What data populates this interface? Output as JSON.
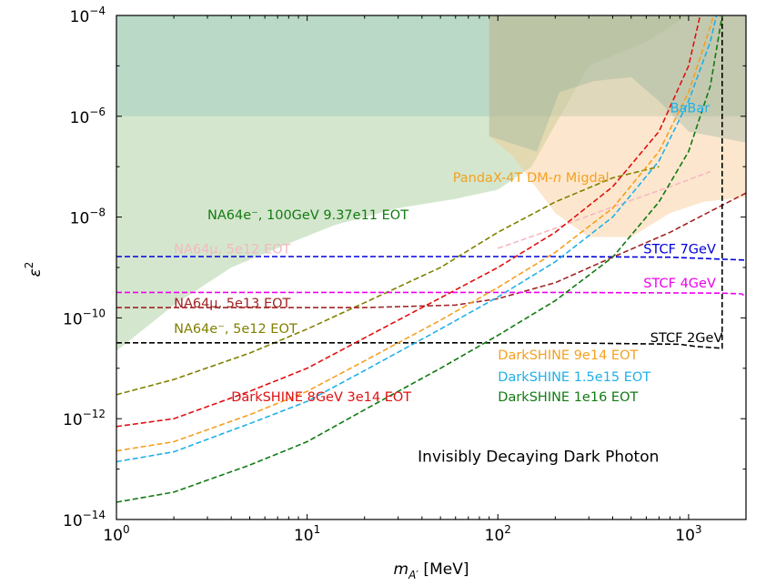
{
  "chart_data": {
    "type": "line",
    "title": "Invisibly Decaying Dark Photon",
    "xlabel": {
      "base": "m",
      "sub": "A′",
      "unit": " [MeV]"
    },
    "ylabel": {
      "base": "ε",
      "sup": "2"
    },
    "xscale": "log",
    "yscale": "log",
    "xlim": [
      1,
      2000
    ],
    "ylim": [
      1e-14,
      0.0001
    ],
    "x_ticks": [
      {
        "base": "10",
        "exp": "0",
        "value": 1
      },
      {
        "base": "10",
        "exp": "1",
        "value": 10
      },
      {
        "base": "10",
        "exp": "2",
        "value": 100
      },
      {
        "base": "10",
        "exp": "3",
        "value": 1000
      }
    ],
    "y_ticks": [
      {
        "base": "10",
        "exp": "−4",
        "value": 0.0001
      },
      {
        "base": "10",
        "exp": "−6",
        "value": 1e-06
      },
      {
        "base": "10",
        "exp": "−8",
        "value": 1e-08
      },
      {
        "base": "10",
        "exp": "−10",
        "value": 1e-10
      },
      {
        "base": "10",
        "exp": "−12",
        "value": 1e-12
      },
      {
        "base": "10",
        "exp": "−14",
        "value": 1e-14
      }
    ],
    "excluded_regions": [
      {
        "name": "NA64e- excluded",
        "color": "#8fbf7f",
        "opacity": 0.38,
        "points": [
          [
            1,
            2.2e-11
          ],
          [
            2,
            1.8e-10
          ],
          [
            4,
            1e-09
          ],
          [
            8,
            3e-09
          ],
          [
            14,
            7e-09
          ],
          [
            30,
            1.5e-08
          ],
          [
            60,
            2.3e-08
          ],
          [
            100,
            3.5e-08
          ],
          [
            150,
            1e-07
          ],
          [
            300,
            1e-05
          ],
          [
            600,
            3e-05
          ],
          [
            1000,
            0.0001
          ],
          [
            1,
            0.0001
          ]
        ]
      },
      {
        "name": "BaBar excluded",
        "color": "#a0cdc0",
        "opacity": 0.5,
        "points": [
          [
            1,
            1e-06
          ],
          [
            2000,
            1e-06
          ],
          [
            2000,
            0.0001
          ],
          [
            1,
            0.0001
          ]
        ]
      },
      {
        "name": "PandaX-4T DM-n Migdal excluded",
        "color": "#f7c68a",
        "opacity": 0.42,
        "points": [
          [
            90,
            0.0001
          ],
          [
            90,
            4e-07
          ],
          [
            120,
            1.6e-07
          ],
          [
            200,
            1.2e-08
          ],
          [
            300,
            4e-09
          ],
          [
            500,
            4e-09
          ],
          [
            800,
            1.2e-08
          ],
          [
            1200,
            2e-08
          ],
          [
            2000,
            2.5e-08
          ],
          [
            2000,
            0.0001
          ]
        ]
      },
      {
        "name": "Grey-green upper region",
        "color": "#8db09a",
        "opacity": 0.35,
        "points": [
          [
            90,
            0.0001
          ],
          [
            90,
            4e-07
          ],
          [
            160,
            2e-07
          ],
          [
            210,
            3e-06
          ],
          [
            320,
            5e-06
          ],
          [
            500,
            6e-06
          ],
          [
            700,
            2e-06
          ],
          [
            1000,
            5e-07
          ],
          [
            2000,
            3e-07
          ],
          [
            2000,
            0.0001
          ]
        ]
      }
    ],
    "series": [
      {
        "name": "NA64e⁻, 5e12 EOT",
        "color": "#808000",
        "points": [
          [
            1,
            3e-12
          ],
          [
            2,
            6e-12
          ],
          [
            5,
            2e-11
          ],
          [
            10,
            6e-11
          ],
          [
            20,
            2e-10
          ],
          [
            50,
            1e-09
          ],
          [
            100,
            5e-09
          ],
          [
            200,
            2e-08
          ],
          [
            400,
            6e-08
          ],
          [
            700,
            1e-07
          ]
        ]
      },
      {
        "name": "NA64μ, 5e12 EOT",
        "color": "#f4b8c0",
        "points": [
          [
            100,
            2.4e-09
          ],
          [
            200,
            6e-09
          ],
          [
            400,
            1.6e-08
          ],
          [
            800,
            4e-08
          ],
          [
            1300,
            8e-08
          ]
        ]
      },
      {
        "name": "NA64μ, 5e13 EOT",
        "color": "#a02525",
        "points": [
          [
            1,
            1.6e-10
          ],
          [
            20,
            1.6e-10
          ],
          [
            60,
            1.8e-10
          ],
          [
            100,
            2.4e-10
          ],
          [
            200,
            5e-10
          ],
          [
            400,
            1.6e-09
          ],
          [
            800,
            5e-09
          ],
          [
            1300,
            1.3e-08
          ],
          [
            2000,
            3e-08
          ]
        ]
      },
      {
        "name": "STCF 7GeV",
        "color": "#0000dd",
        "points": [
          [
            1,
            1.65e-09
          ],
          [
            200,
            1.65e-09
          ],
          [
            800,
            1.6e-09
          ],
          [
            2000,
            1.4e-09
          ]
        ]
      },
      {
        "name": "STCF 4GeV",
        "color": "#ee00ee",
        "points": [
          [
            1,
            3.2e-10
          ],
          [
            200,
            3.2e-10
          ],
          [
            1500,
            3.1e-10
          ],
          [
            1900,
            3e-10
          ],
          [
            2000,
            2.6e-10
          ]
        ]
      },
      {
        "name": "STCF 2GeV",
        "color": "#000000",
        "points": [
          [
            1,
            3.2e-11
          ],
          [
            200,
            3.2e-11
          ],
          [
            900,
            3e-11
          ],
          [
            1100,
            2.7e-11
          ],
          [
            1500,
            2.5e-11
          ],
          [
            1500,
            0.0001
          ]
        ]
      },
      {
        "name": "DarkSHINE 8GeV 3e14 EOT",
        "color": "#e01010",
        "points": [
          [
            1,
            7e-13
          ],
          [
            2,
            1e-12
          ],
          [
            5,
            3.5e-12
          ],
          [
            10,
            1e-11
          ],
          [
            20,
            4e-11
          ],
          [
            50,
            2.5e-10
          ],
          [
            100,
            1e-09
          ],
          [
            200,
            5e-09
          ],
          [
            400,
            4e-08
          ],
          [
            700,
            5e-07
          ],
          [
            1000,
            1e-05
          ],
          [
            1150,
            0.0001
          ]
        ]
      },
      {
        "name": "DarkSHINE 9e14 EOT",
        "color": "#f5a020",
        "points": [
          [
            1,
            2.3e-13
          ],
          [
            2,
            3.5e-13
          ],
          [
            5,
            1.2e-12
          ],
          [
            10,
            3.5e-12
          ],
          [
            20,
            1.4e-11
          ],
          [
            50,
            9e-11
          ],
          [
            100,
            4e-10
          ],
          [
            200,
            2e-09
          ],
          [
            400,
            1.5e-08
          ],
          [
            700,
            2e-07
          ],
          [
            1000,
            3e-06
          ],
          [
            1300,
            6e-05
          ],
          [
            1350,
            0.0001
          ]
        ]
      },
      {
        "name": "DarkSHINE 1.5e15 EOT",
        "color": "#20b0e8",
        "points": [
          [
            1,
            1.4e-13
          ],
          [
            2,
            2.2e-13
          ],
          [
            5,
            8e-13
          ],
          [
            10,
            2.2e-12
          ],
          [
            20,
            9e-12
          ],
          [
            50,
            6e-11
          ],
          [
            100,
            2.6e-10
          ],
          [
            200,
            1.3e-09
          ],
          [
            400,
            1e-08
          ],
          [
            700,
            1.3e-07
          ],
          [
            1000,
            2e-06
          ],
          [
            1300,
            3e-05
          ],
          [
            1400,
            0.0001
          ]
        ]
      },
      {
        "name": "DarkSHINE 1e16 EOT",
        "color": "#127a12",
        "points": [
          [
            1,
            2.2e-14
          ],
          [
            2,
            3.5e-14
          ],
          [
            5,
            1.2e-13
          ],
          [
            10,
            3.5e-13
          ],
          [
            20,
            1.5e-12
          ],
          [
            50,
            1e-11
          ],
          [
            100,
            4.5e-11
          ],
          [
            200,
            2.2e-10
          ],
          [
            400,
            1.6e-09
          ],
          [
            700,
            2e-08
          ],
          [
            1000,
            2e-07
          ],
          [
            1300,
            4e-06
          ],
          [
            1500,
            0.0001
          ]
        ]
      }
    ],
    "annotations": [
      {
        "name": "ann-babar",
        "text": "BaBar",
        "color": "#20b0e8",
        "x": 800,
        "y": 1.2e-06,
        "anchor": "start"
      },
      {
        "name": "ann-pandax",
        "text": "PandaX-4T DM-n Migdal",
        "color": "#f5a020",
        "x": 58,
        "y": 5e-08,
        "anchor": "start",
        "italic_n": true
      },
      {
        "name": "ann-na64e-100gev",
        "text": "NA64e⁻, 100GeV 9.37e11 EOT",
        "color": "#127a12",
        "x": 3,
        "y": 9e-09,
        "anchor": "start"
      },
      {
        "name": "ann-na64mu-5e12",
        "text": "NA64μ, 5e12 EOT",
        "color": "#f4b8c0",
        "x": 2,
        "y": 1.9e-09,
        "anchor": "start"
      },
      {
        "name": "ann-stcf7",
        "text": "STCF 7GeV",
        "color": "#0000dd",
        "x": 580,
        "y": 1.9e-09,
        "anchor": "start"
      },
      {
        "name": "ann-stcf4",
        "text": "STCF 4GeV",
        "color": "#ee00ee",
        "x": 580,
        "y": 4e-10,
        "anchor": "start"
      },
      {
        "name": "ann-na64mu-5e13",
        "text": "NA64μ, 5e13 EOT",
        "color": "#a02525",
        "x": 2,
        "y": 1.6e-10,
        "anchor": "start"
      },
      {
        "name": "ann-na64e-5e12",
        "text": "NA64e⁻, 5e12 EOT",
        "color": "#808000",
        "x": 2,
        "y": 5e-11,
        "anchor": "start"
      },
      {
        "name": "ann-stcf2",
        "text": "STCF 2GeV",
        "color": "#000000",
        "x": 630,
        "y": 3.3e-11,
        "anchor": "start"
      },
      {
        "name": "ann-ds-9e14",
        "text": "DarkSHINE 9e14 EOT",
        "color": "#f5a020",
        "x": 100,
        "y": 1.5e-11,
        "anchor": "start"
      },
      {
        "name": "ann-ds-1p5e15",
        "text": "DarkSHINE 1.5e15 EOT",
        "color": "#20b0e8",
        "x": 100,
        "y": 5.5e-12,
        "anchor": "start"
      },
      {
        "name": "ann-ds-8gev",
        "text": "DarkSHINE 8GeV 3e14 EOT",
        "color": "#e01010",
        "x": 4,
        "y": 2.2e-12,
        "anchor": "start"
      },
      {
        "name": "ann-ds-1e16",
        "text": "DarkSHINE 1e16 EOT",
        "color": "#127a12",
        "x": 100,
        "y": 2.2e-12,
        "anchor": "start"
      },
      {
        "name": "ann-title",
        "text": "Invisibly Decaying Dark Photon",
        "color": "#000000",
        "x": 700,
        "y": 1.4e-13,
        "anchor": "end"
      }
    ]
  }
}
